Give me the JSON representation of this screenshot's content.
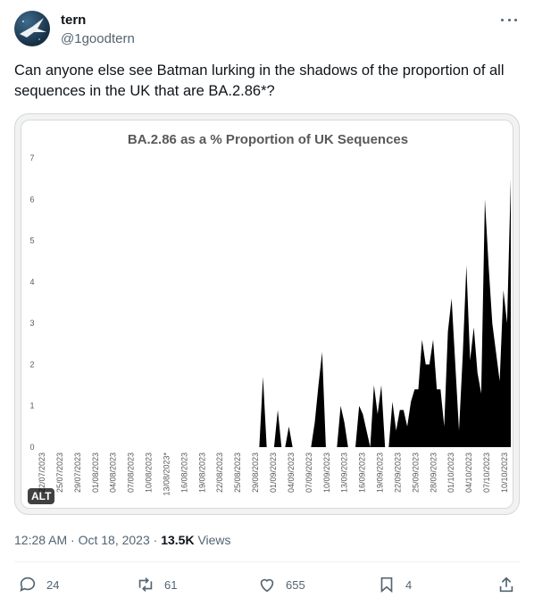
{
  "author": {
    "name": "tern",
    "handle": "@1goodtern"
  },
  "text": "Can anyone else see Batman lurking in the shadows of the proportion of all sequences in the UK that are BA.2.86*?",
  "media": {
    "alt_badge": "ALT"
  },
  "meta": {
    "time": "12:28 AM · Oct 18, 2023 · ",
    "views_count": "13.5K",
    "views_label": " Views"
  },
  "actions": {
    "replies": "24",
    "reposts": "61",
    "likes": "655",
    "bookmarks": "4"
  },
  "chart_data": {
    "type": "area",
    "title": "BA.2.86 as a % Proportion of UK Sequences",
    "xlabel": "",
    "ylabel": "",
    "ylim": [
      0,
      7
    ],
    "yticks": [
      "0",
      "1",
      "2",
      "3",
      "4",
      "5",
      "6",
      "7"
    ],
    "xtick_labels": [
      "22/07/2023",
      "25/07/2023",
      "29/07/2023",
      "01/08/2023",
      "04/08/2023",
      "07/08/2023",
      "10/08/2023",
      "13/08/2023*",
      "16/08/2023",
      "19/08/2023",
      "22/08/2023",
      "25/08/2023",
      "29/08/2023",
      "01/09/2023",
      "04/09/2023",
      "07/09/2023",
      "10/09/2023",
      "13/09/2023",
      "16/09/2023",
      "19/09/2023",
      "22/09/2023",
      "25/09/2023",
      "28/09/2023",
      "01/10/2023",
      "04/10/2023",
      "07/10/2023",
      "10/10/2023"
    ],
    "series": [
      {
        "values": [
          0,
          0,
          0,
          0,
          0,
          0,
          0,
          0,
          0,
          0,
          0,
          0,
          0,
          0,
          0,
          0,
          0,
          0,
          0,
          0,
          0,
          0,
          0,
          0,
          0,
          0,
          0,
          0,
          0,
          0,
          0,
          0,
          0,
          0,
          0,
          0,
          0,
          0,
          0,
          0,
          0,
          0,
          0,
          0,
          0,
          0,
          0,
          0,
          0,
          0,
          0,
          0,
          0,
          0,
          0,
          0,
          0,
          0,
          0,
          0,
          1.7,
          0,
          0,
          0,
          0.9,
          0,
          0,
          0.5,
          0,
          0,
          0,
          0,
          0,
          0,
          0.6,
          1.5,
          2.3,
          0,
          0,
          0,
          0,
          1.0,
          0.6,
          0,
          0,
          0,
          1.0,
          0.8,
          0.4,
          0,
          1.5,
          0.8,
          1.5,
          0,
          0,
          1.1,
          0.4,
          0.9,
          0.9,
          0.5,
          1.1,
          1.4,
          1.4,
          2.6,
          2.0,
          2.0,
          2.6,
          1.4,
          1.4,
          0.5,
          2.8,
          3.6,
          2.0,
          0.4,
          2.2,
          4.4,
          2.1,
          2.9,
          1.8,
          1.3,
          6.0,
          4.4,
          3.0,
          2.3,
          1.6,
          3.8,
          3.0,
          6.5
        ]
      }
    ]
  }
}
